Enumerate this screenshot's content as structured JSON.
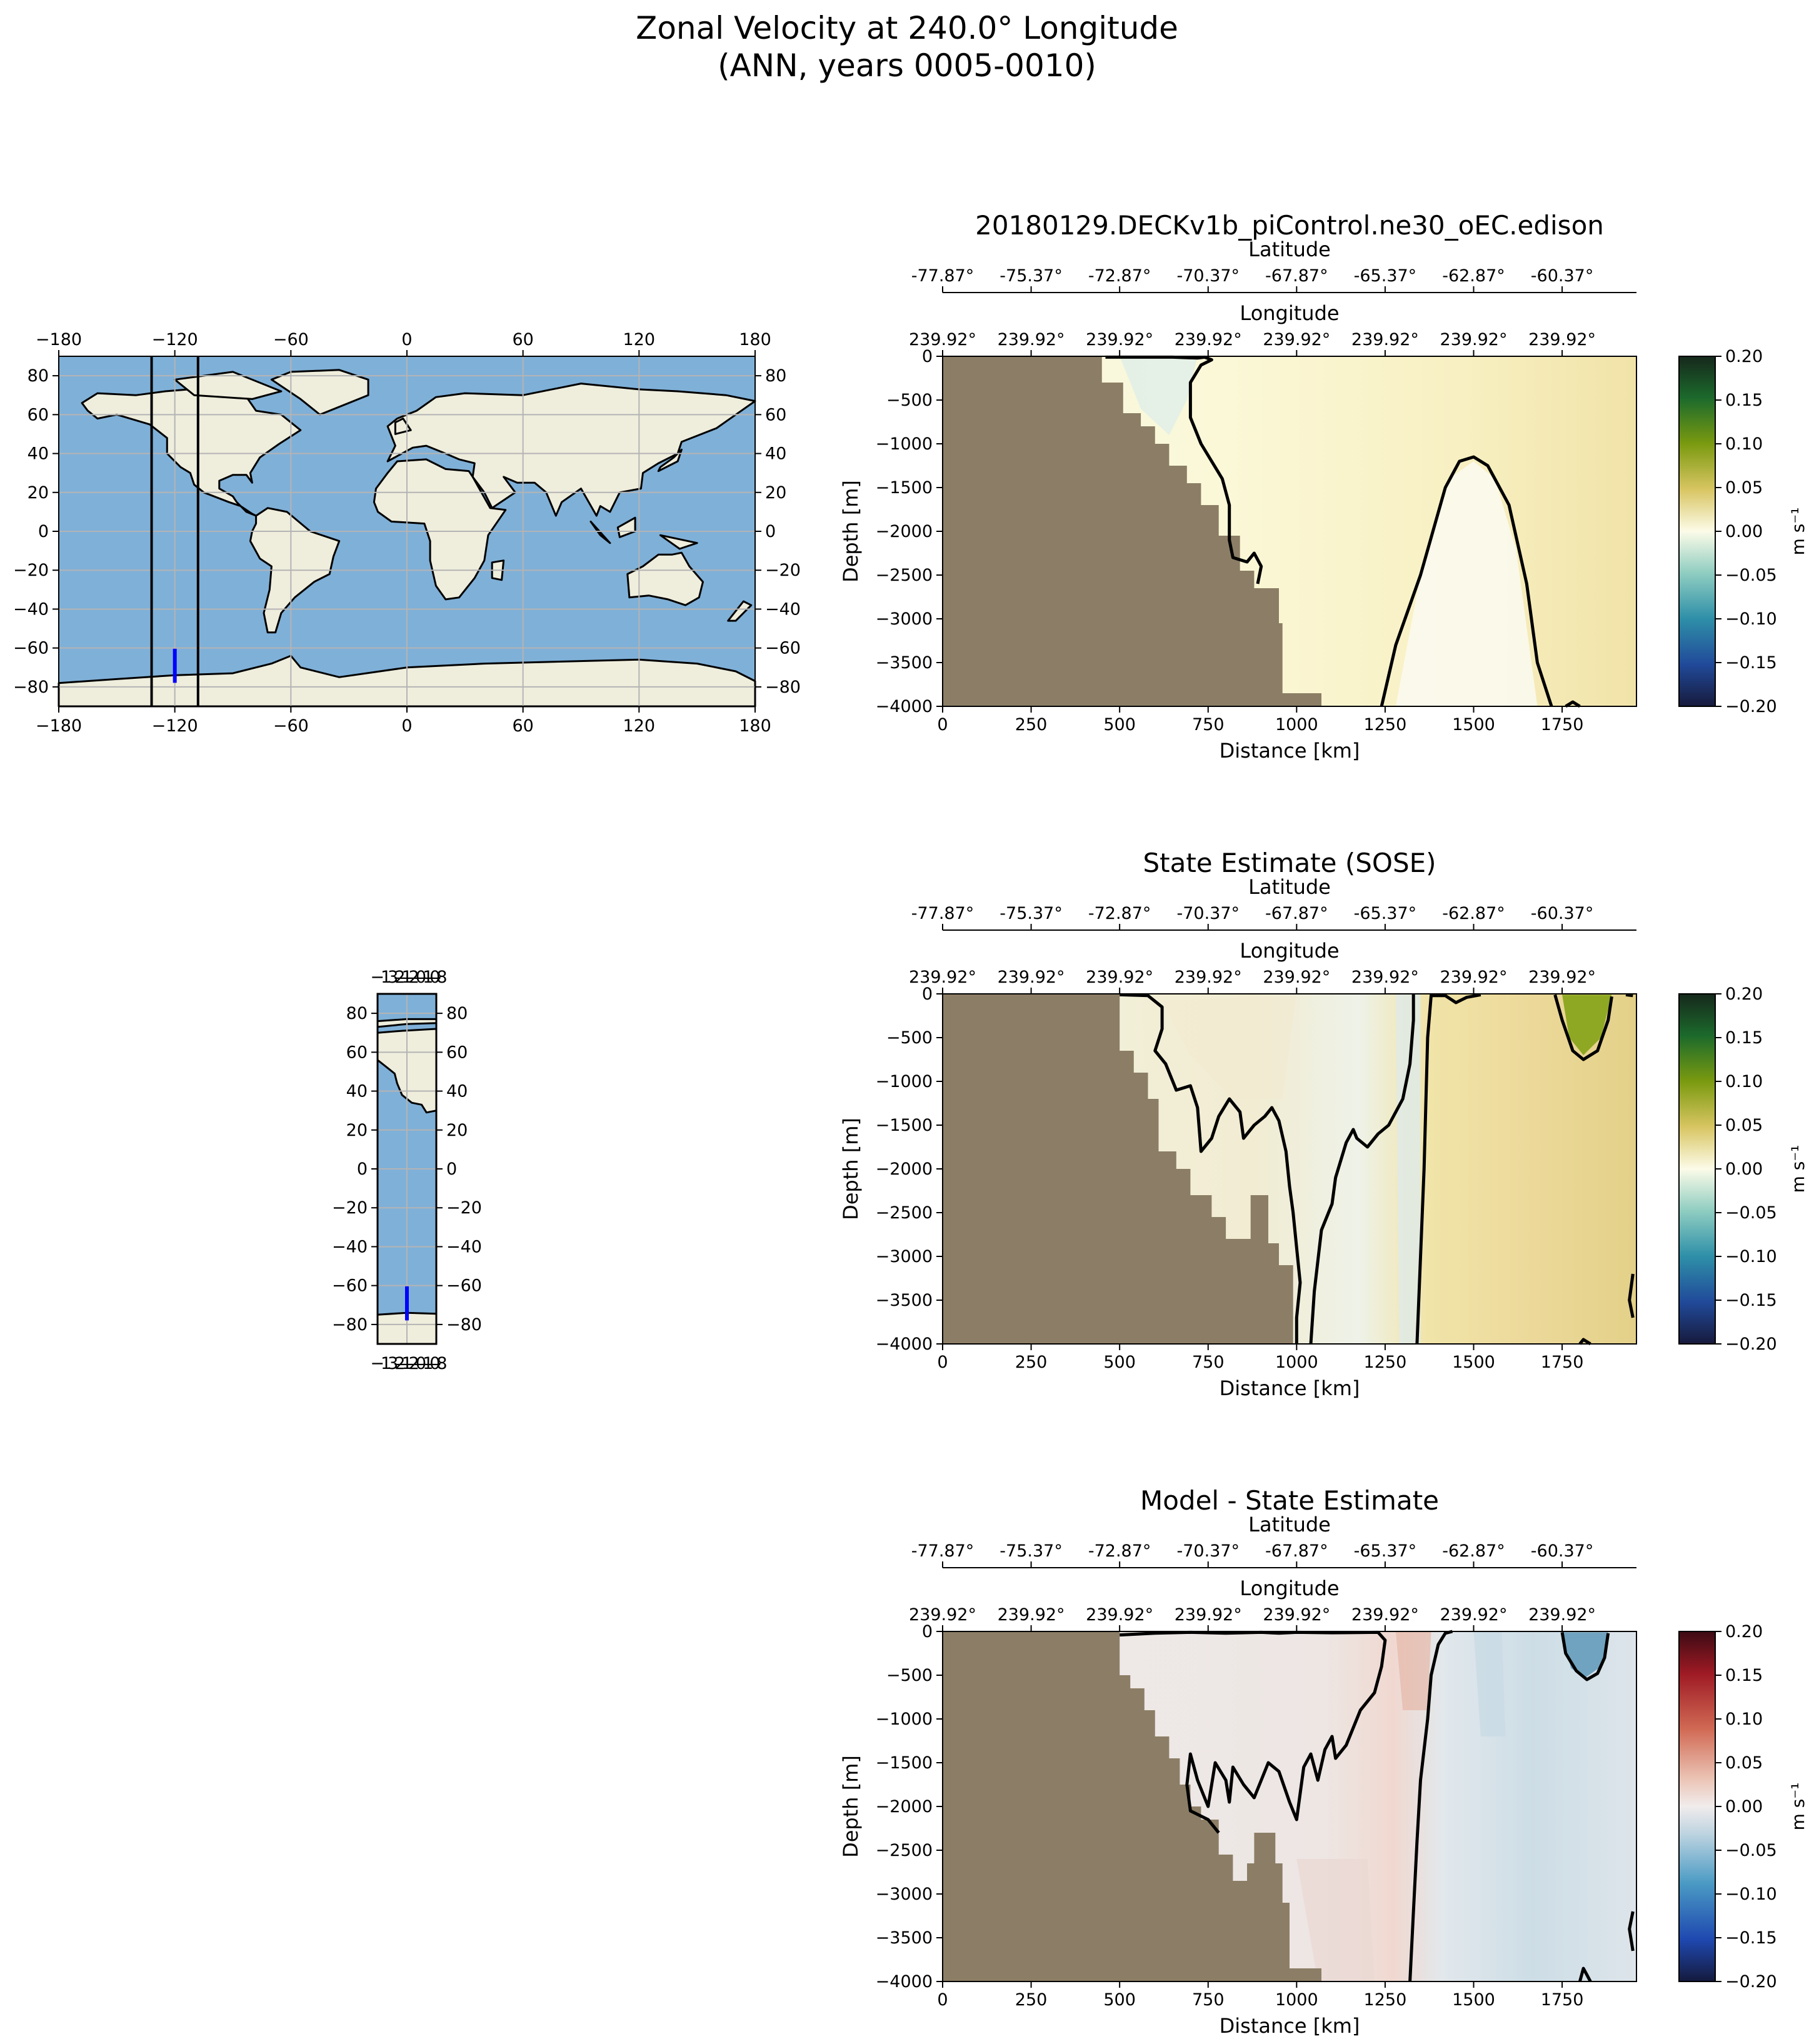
{
  "figure": {
    "title_line1": "Zonal Velocity at 240.0° Longitude",
    "title_line2": "(ANN, years 0005-0010)"
  },
  "colors": {
    "land": "#8c7e66",
    "map_ocean": "#7fb0d8",
    "map_land": "#efeddc",
    "section_line": "#0000ff"
  },
  "maps": [
    {
      "name": "global",
      "lon_ticks": [
        "−180",
        "−120",
        "−60",
        "0",
        "60",
        "120",
        "180"
      ],
      "lat_ticks": [
        "80",
        "60",
        "40",
        "20",
        "0",
        "−20",
        "−40",
        "−60",
        "−80"
      ]
    },
    {
      "name": "zoom",
      "lon_tick_text": "−132̶1̶2̶0̶1̶0̶8",
      "lat_ticks": [
        "80",
        "60",
        "40",
        "20",
        "0",
        "−20",
        "−40",
        "−60",
        "−80"
      ]
    }
  ],
  "chart_data": [
    {
      "type": "heatmap",
      "title": "20180129.DECKv1b_piControl.ne30_oEC.edison",
      "xlabel": "Distance [km]",
      "ylabel": "Depth [m]",
      "xlim": [
        0,
        1960
      ],
      "ylim": [
        -4000,
        0
      ],
      "xticks": [
        0,
        250,
        500,
        750,
        1000,
        1250,
        1500,
        1750
      ],
      "yticks": [
        0,
        -500,
        -1000,
        -1500,
        -2000,
        -2500,
        -3000,
        -3500,
        -4000
      ],
      "top_axis1_label": "Latitude",
      "top_axis1_ticks": [
        "-77.87°",
        "-75.37°",
        "-72.87°",
        "-70.37°",
        "-67.87°",
        "-65.37°",
        "-62.87°",
        "-60.37°"
      ],
      "top_axis2_label": "Longitude",
      "top_axis2_ticks": [
        "239.92°",
        "239.92°",
        "239.92°",
        "239.92°",
        "239.92°",
        "239.92°",
        "239.92°",
        "239.92°"
      ],
      "colorbar": {
        "label": "m s⁻¹",
        "ticks": [
          "0.20",
          "0.15",
          "0.10",
          "0.05",
          "0.00",
          "−0.05",
          "−0.10",
          "−0.15",
          "−0.20"
        ],
        "range": [
          -0.2,
          0.2
        ],
        "cmap": "delta"
      }
    },
    {
      "type": "heatmap",
      "title": "State Estimate (SOSE)",
      "xlabel": "Distance [km]",
      "ylabel": "Depth [m]",
      "xlim": [
        0,
        1960
      ],
      "ylim": [
        -4000,
        0
      ],
      "xticks": [
        0,
        250,
        500,
        750,
        1000,
        1250,
        1500,
        1750
      ],
      "yticks": [
        0,
        -500,
        -1000,
        -1500,
        -2000,
        -2500,
        -3000,
        -3500,
        -4000
      ],
      "top_axis1_label": "Latitude",
      "top_axis1_ticks": [
        "-77.87°",
        "-75.37°",
        "-72.87°",
        "-70.37°",
        "-67.87°",
        "-65.37°",
        "-62.87°",
        "-60.37°"
      ],
      "top_axis2_label": "Longitude",
      "top_axis2_ticks": [
        "239.92°",
        "239.92°",
        "239.92°",
        "239.92°",
        "239.92°",
        "239.92°",
        "239.92°",
        "239.92°"
      ],
      "colorbar": {
        "label": "m s⁻¹",
        "ticks": [
          "0.20",
          "0.15",
          "0.10",
          "0.05",
          "0.00",
          "−0.05",
          "−0.10",
          "−0.15",
          "−0.20"
        ],
        "range": [
          -0.2,
          0.2
        ],
        "cmap": "delta"
      }
    },
    {
      "type": "heatmap",
      "title": "Model - State Estimate",
      "xlabel": "Distance [km]",
      "ylabel": "Depth [m]",
      "xlim": [
        0,
        1960
      ],
      "ylim": [
        -4000,
        0
      ],
      "xticks": [
        0,
        250,
        500,
        750,
        1000,
        1250,
        1500,
        1750
      ],
      "yticks": [
        0,
        -500,
        -1000,
        -1500,
        -2000,
        -2500,
        -3000,
        -3500,
        -4000
      ],
      "top_axis1_label": "Latitude",
      "top_axis1_ticks": [
        "-77.87°",
        "-75.37°",
        "-72.87°",
        "-70.37°",
        "-67.87°",
        "-65.37°",
        "-62.87°",
        "-60.37°"
      ],
      "top_axis2_label": "Longitude",
      "top_axis2_ticks": [
        "239.92°",
        "239.92°",
        "239.92°",
        "239.92°",
        "239.92°",
        "239.92°",
        "239.92°",
        "239.92°"
      ],
      "colorbar": {
        "label": "m s⁻¹",
        "ticks": [
          "0.20",
          "0.15",
          "0.10",
          "0.05",
          "0.00",
          "−0.05",
          "−0.10",
          "−0.15",
          "−0.20"
        ],
        "range": [
          -0.2,
          0.2
        ],
        "cmap": "balance"
      }
    }
  ]
}
